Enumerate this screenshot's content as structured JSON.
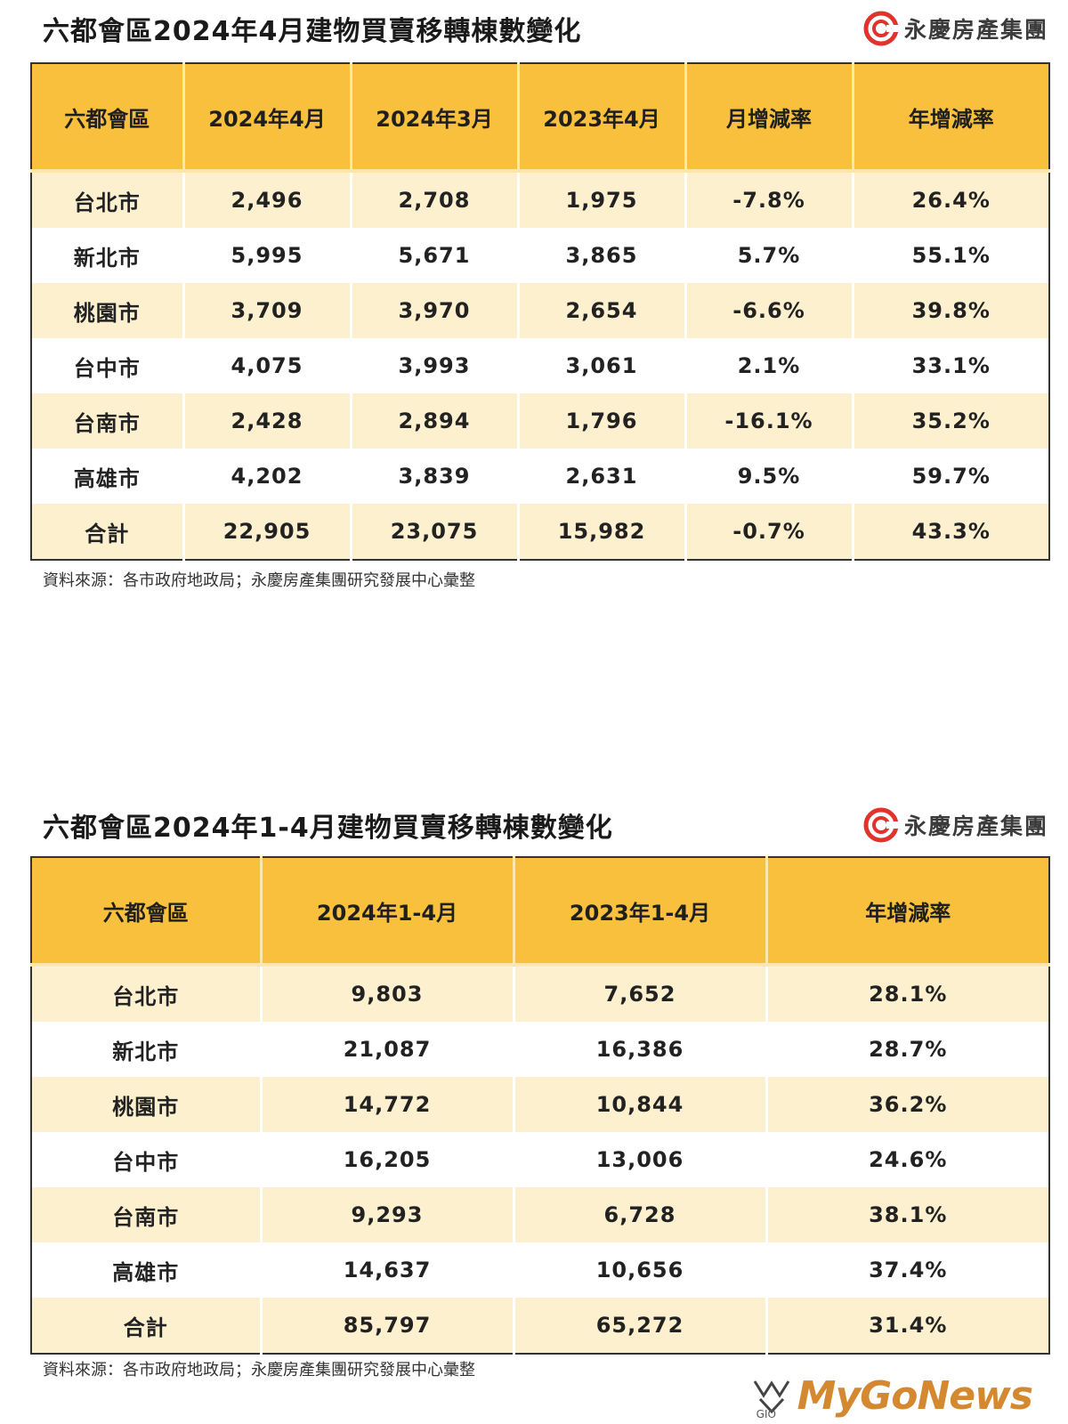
{
  "colors": {
    "header_bg": "#f8c03c",
    "row_alt": "#fdf0cf",
    "logo_red": "#e0332c",
    "watermark": "#d4882f"
  },
  "logo": {
    "text": "永慶房產集團",
    "icon": "yungching-logo-icon"
  },
  "table1": {
    "title": "六都會區2024年4月建物買賣移轉棟數變化",
    "headers": [
      "六都會區",
      "2024年4月",
      "2024年3月",
      "2023年4月",
      "月增減率",
      "年增減率"
    ],
    "rows": [
      [
        "台北市",
        "2,496",
        "2,708",
        "1,975",
        "-7.8%",
        "26.4%"
      ],
      [
        "新北市",
        "5,995",
        "5,671",
        "3,865",
        "5.7%",
        "55.1%"
      ],
      [
        "桃園市",
        "3,709",
        "3,970",
        "2,654",
        "-6.6%",
        "39.8%"
      ],
      [
        "台中市",
        "4,075",
        "3,993",
        "3,061",
        "2.1%",
        "33.1%"
      ],
      [
        "台南市",
        "2,428",
        "2,894",
        "1,796",
        "-16.1%",
        "35.2%"
      ],
      [
        "高雄市",
        "4,202",
        "3,839",
        "2,631",
        "9.5%",
        "59.7%"
      ],
      [
        "合計",
        "22,905",
        "23,075",
        "15,982",
        "-0.7%",
        "43.3%"
      ]
    ],
    "source": "資料來源：各市政府地政局；永慶房產集團研究發展中心彙整"
  },
  "table2": {
    "title": "六都會區2024年1-4月建物買賣移轉棟數變化",
    "headers": [
      "六都會區",
      "2024年1-4月",
      "2023年1-4月",
      "年增減率"
    ],
    "rows": [
      [
        "台北市",
        "9,803",
        "7,652",
        "28.1%"
      ],
      [
        "新北市",
        "21,087",
        "16,386",
        "28.7%"
      ],
      [
        "桃園市",
        "14,772",
        "10,844",
        "36.2%"
      ],
      [
        "台中市",
        "16,205",
        "13,006",
        "24.6%"
      ],
      [
        "台南市",
        "9,293",
        "6,728",
        "38.1%"
      ],
      [
        "高雄市",
        "14,637",
        "10,656",
        "37.4%"
      ],
      [
        "合計",
        "85,797",
        "65,272",
        "31.4%"
      ]
    ],
    "source": "資料來源：各市政府地政局；永慶房產集團研究發展中心彙整"
  },
  "watermark": {
    "text": "MyGoNews",
    "sub": "GIO"
  }
}
